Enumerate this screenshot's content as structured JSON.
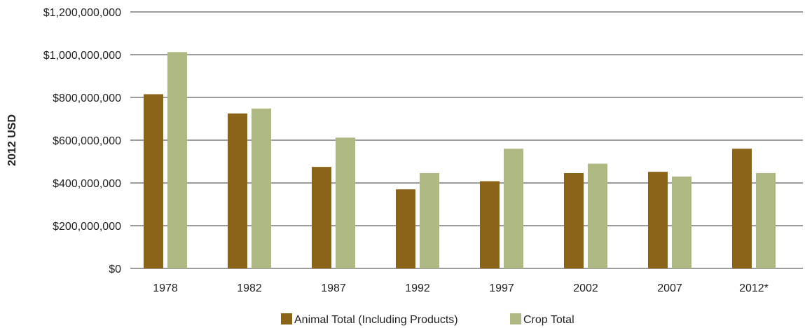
{
  "chart_data": {
    "type": "bar",
    "title": "",
    "xlabel": "",
    "ylabel": "2012 USD",
    "categories": [
      "1978",
      "1982",
      "1987",
      "1992",
      "1997",
      "2002",
      "2007",
      "2012*"
    ],
    "series": [
      {
        "name": "Animal Total (Including Products)",
        "color": "#8b6419",
        "values": [
          815000000,
          725000000,
          475000000,
          370000000,
          408000000,
          446000000,
          452000000,
          560000000
        ]
      },
      {
        "name": "Crop Total",
        "color": "#adb882",
        "values": [
          1012000000,
          748000000,
          612000000,
          446000000,
          560000000,
          490000000,
          430000000,
          446000000
        ]
      }
    ],
    "ylim": [
      0,
      1200000000
    ],
    "yticks": [
      0,
      200000000,
      400000000,
      600000000,
      800000000,
      1000000000,
      1200000000
    ],
    "ytick_labels": [
      "$0",
      "$200,000,000",
      "$400,000,000",
      "$600,000,000",
      "$800,000,000",
      "$1,000,000,000",
      "$1,200,000,000"
    ],
    "grid": true,
    "legend_position": "bottom-center"
  }
}
